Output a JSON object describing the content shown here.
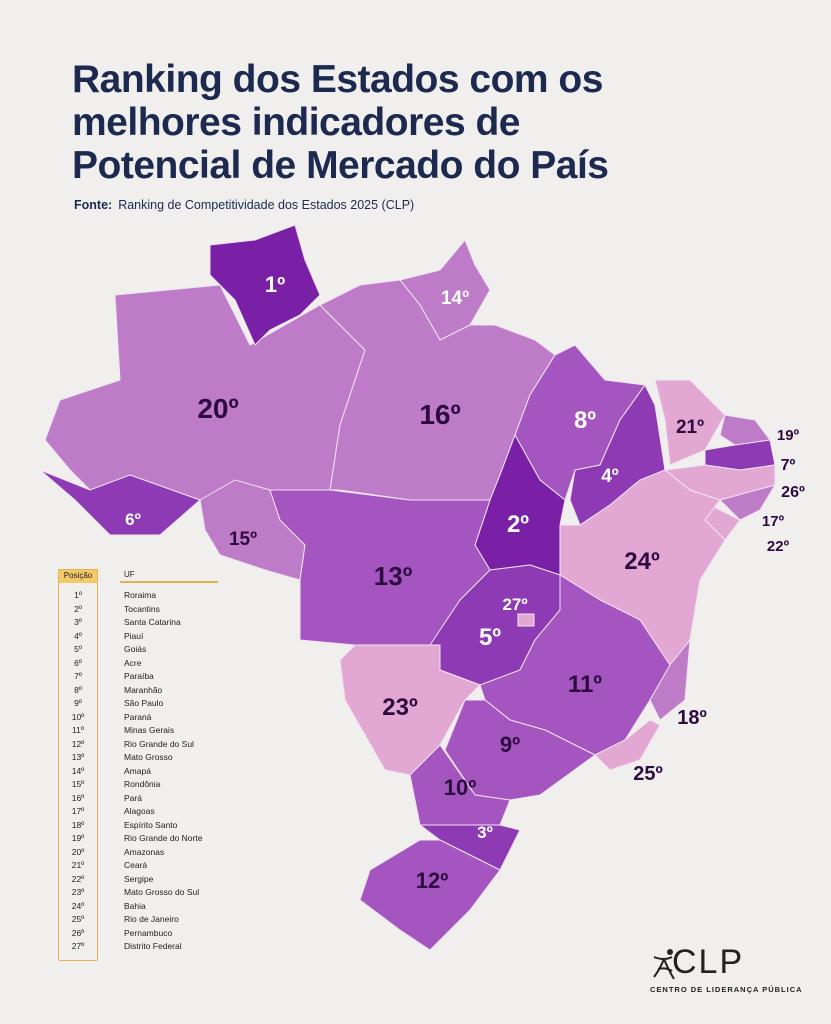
{
  "title": "Ranking dos Estados com os melhores indicadores de Potencial de Mercado do País",
  "source": {
    "label": "Fonte:",
    "text": "Ranking de Competitividade dos Estados 2025 (CLP)"
  },
  "colors": {
    "tier1": "#7a20a6",
    "tier2": "#8d3ab4",
    "tier3": "#a455bf",
    "tier4": "#bd7bc8",
    "tier5": "#e2a7d3",
    "title": "#1c2a50",
    "legend_accent": "#e2b450"
  },
  "legend": {
    "header_position": "Posição",
    "header_uf": "UF",
    "rows": [
      {
        "pos": "1º",
        "uf": "Roraima"
      },
      {
        "pos": "2º",
        "uf": "Tocantins"
      },
      {
        "pos": "3º",
        "uf": "Santa Catarina"
      },
      {
        "pos": "4º",
        "uf": "Piauí"
      },
      {
        "pos": "5º",
        "uf": "Goiás"
      },
      {
        "pos": "6º",
        "uf": "Acre"
      },
      {
        "pos": "7º",
        "uf": "Paraíba"
      },
      {
        "pos": "8º",
        "uf": "Maranhão"
      },
      {
        "pos": "9º",
        "uf": "São Paulo"
      },
      {
        "pos": "10º",
        "uf": "Paraná"
      },
      {
        "pos": "11º",
        "uf": "Minas Gerais"
      },
      {
        "pos": "12º",
        "uf": "Rio Grande do Sul"
      },
      {
        "pos": "13º",
        "uf": "Mato Grosso"
      },
      {
        "pos": "14º",
        "uf": "Amapá"
      },
      {
        "pos": "15º",
        "uf": "Rondônia"
      },
      {
        "pos": "16º",
        "uf": "Pará"
      },
      {
        "pos": "17º",
        "uf": "Alagoas"
      },
      {
        "pos": "18º",
        "uf": "Espírito Santo"
      },
      {
        "pos": "19º",
        "uf": "Rio Grande do Norte"
      },
      {
        "pos": "20º",
        "uf": "Amazonas"
      },
      {
        "pos": "21º",
        "uf": "Ceará"
      },
      {
        "pos": "22º",
        "uf": "Sergipe"
      },
      {
        "pos": "23º",
        "uf": "Mato Grosso do Sul"
      },
      {
        "pos": "24º",
        "uf": "Bahia"
      },
      {
        "pos": "25º",
        "uf": "Rio de Janeiro"
      },
      {
        "pos": "26º",
        "uf": "Pernambuco"
      },
      {
        "pos": "27º",
        "uf": "Distrito Federal"
      }
    ]
  },
  "map_labels": {
    "RR": "1º",
    "TO": "2º",
    "SC": "3º",
    "PI": "4º",
    "GO": "5º",
    "AC": "6º",
    "PB": "7º",
    "MA": "8º",
    "SP": "9º",
    "PR": "10º",
    "MG": "11º",
    "RS": "12º",
    "MT": "13º",
    "AP": "14º",
    "RO": "15º",
    "PA": "16º",
    "AL": "17º",
    "ES": "18º",
    "RN": "19º",
    "AM": "20º",
    "CE": "21º",
    "SE": "22º",
    "MS": "23º",
    "BA": "24º",
    "RJ": "25º",
    "PE": "26º",
    "DF": "27º"
  },
  "logo": {
    "text": "CLP",
    "subtitle": "CENTRO DE LIDERANÇA PÚBLICA"
  }
}
